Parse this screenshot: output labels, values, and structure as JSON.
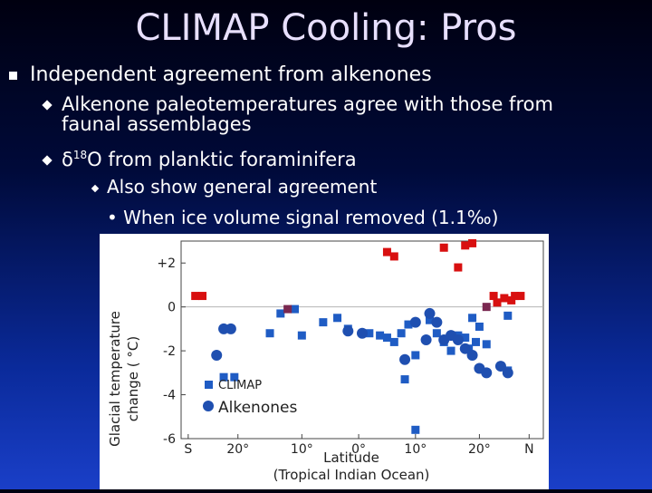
{
  "slide": {
    "title": "CLIMAP Cooling: Pros",
    "bullet1": "Independent agreement from alkenones",
    "sub1_line1": "Alkenone paleotemperatures agree with those from",
    "sub1_line2": "faunal assemblages",
    "sub2_delta": "δ",
    "sub2_sup": "18",
    "sub2_rest": "O from planktic foraminifera",
    "subsub": "Also show general agreement",
    "subsubsub": "• When ice volume signal removed (1.1‰)"
  },
  "colors": {
    "climap": "#1f5cc4",
    "alkenone": "#1f4fb0",
    "red": "#d81010"
  },
  "chart_data": {
    "type": "scatter",
    "ylabel_line1": "Glacial temperature",
    "ylabel_line2": "change ( °C)",
    "xlabel_line1": "Latitude",
    "xlabel_line2": "(Tropical Indian Ocean)",
    "xticks": [
      "S",
      "20°",
      "10°",
      "0°",
      "10°",
      "20°",
      "N"
    ],
    "yticks": [
      "+2",
      "0",
      "-2",
      "-4",
      "-6"
    ],
    "ylim": [
      -6,
      3
    ],
    "xlim": [
      -25,
      26
    ],
    "legend": [
      "CLIMAP",
      "Alkenones"
    ],
    "series": [
      {
        "name": "CLIMAP",
        "marker": "square",
        "color": "#1f5cc4",
        "points": [
          [
            -19,
            -3.2
          ],
          [
            -17.5,
            -3.2
          ],
          [
            -12.5,
            -1.2
          ],
          [
            -11,
            -0.3
          ],
          [
            -9,
            -0.1
          ],
          [
            -8,
            -1.3
          ],
          [
            -5,
            -0.7
          ],
          [
            -3,
            -0.5
          ],
          [
            -1.5,
            -1
          ],
          [
            1.5,
            -1.2
          ],
          [
            3,
            -1.3
          ],
          [
            4,
            -1.4
          ],
          [
            5,
            -1.6
          ],
          [
            6,
            -1.2
          ],
          [
            7,
            -0.8
          ],
          [
            6.5,
            -3.3
          ],
          [
            8,
            -2.2
          ],
          [
            10,
            -0.6
          ],
          [
            11,
            -1.2
          ],
          [
            12,
            -1.6
          ],
          [
            13,
            -2
          ],
          [
            14,
            -1.3
          ],
          [
            15,
            -1.4
          ],
          [
            16,
            -0.5
          ],
          [
            15.5,
            -1.9
          ],
          [
            16.5,
            -1.6
          ],
          [
            17,
            -0.9
          ],
          [
            18,
            -1.7
          ],
          [
            21,
            -2.9
          ],
          [
            21,
            -0.4
          ],
          [
            8,
            -5.6
          ]
        ]
      },
      {
        "name": "Alkenones",
        "marker": "circle",
        "color": "#1f4fb0",
        "points": [
          [
            -20,
            -2.2
          ],
          [
            -19,
            -1
          ],
          [
            -18,
            -1
          ],
          [
            -1.5,
            -1.1
          ],
          [
            0.5,
            -1.2
          ],
          [
            6.5,
            -2.4
          ],
          [
            8,
            -0.7
          ],
          [
            9.5,
            -1.5
          ],
          [
            10,
            -0.3
          ],
          [
            11,
            -0.7
          ],
          [
            12,
            -1.5
          ],
          [
            13,
            -1.3
          ],
          [
            14,
            -1.5
          ],
          [
            15,
            -1.9
          ],
          [
            16,
            -2.2
          ],
          [
            17,
            -2.8
          ],
          [
            18,
            -3
          ],
          [
            20,
            -2.7
          ],
          [
            21,
            -3
          ]
        ]
      },
      {
        "name": "",
        "marker": "square",
        "color": "#d81010",
        "points": [
          [
            -23,
            0.5
          ],
          [
            -22,
            0.5
          ],
          [
            4,
            2.5
          ],
          [
            5,
            2.3
          ],
          [
            12,
            2.7
          ],
          [
            14,
            1.8
          ],
          [
            15,
            2.8
          ],
          [
            16,
            2.9
          ],
          [
            19,
            0.5
          ],
          [
            19.5,
            0.2
          ],
          [
            20.5,
            0.4
          ],
          [
            21.5,
            0.3
          ],
          [
            22,
            0.5
          ],
          [
            22.8,
            0.5
          ]
        ]
      },
      {
        "name": "",
        "marker": "square",
        "color": "#7a2850",
        "points": [
          [
            -10,
            -0.1
          ],
          [
            18,
            0
          ]
        ]
      }
    ]
  }
}
